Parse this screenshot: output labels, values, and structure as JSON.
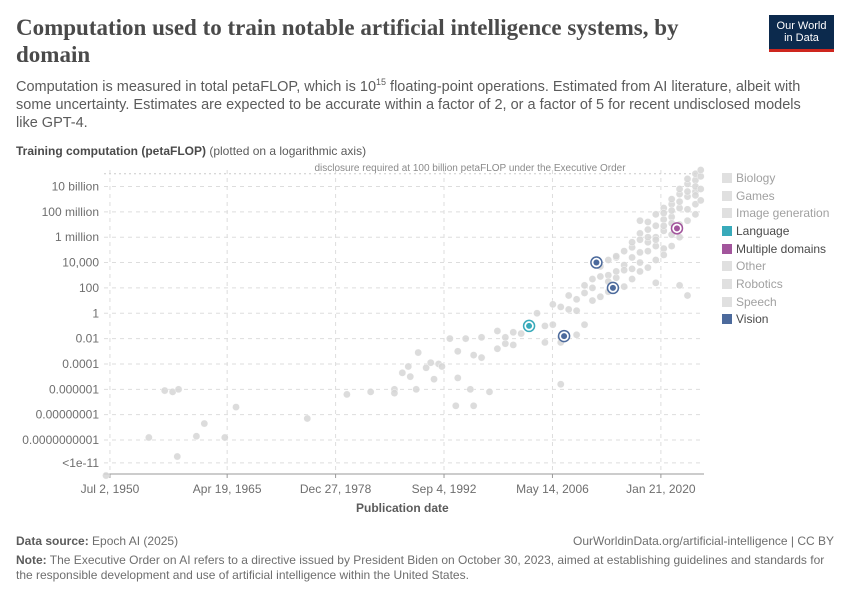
{
  "header": {
    "title": "Computation used to train notable artificial intelligence systems, by domain",
    "subtitle_pre": "Computation is measured in total petaFLOP, which is 10",
    "subtitle_sup": "15",
    "subtitle_post": " floating-point operations. Estimated from AI literature, albeit with some uncertainty. Estimates are expected to be accurate within a factor of 2, or a factor of 5 for recent undisclosed models like GPT-4.",
    "logo_line1": "Our World",
    "logo_line2": "in Data"
  },
  "axis": {
    "y_title_bold": "Training computation (petaFLOP)",
    "y_title_note": "(plotted on a logarithmic axis)",
    "x_title": "Publication date"
  },
  "footer": {
    "source_label": "Data source:",
    "source_value": "Epoch AI (2025)",
    "url": "OurWorldinData.org/artificial-intelligence | CC BY",
    "note_label": "Note:",
    "note_text": "The Executive Order on AI refers to a directive issued by President Biden on October 30, 2023, aimed at establishing guidelines and standards for the responsible development and use of artificial intelligence within the United States."
  },
  "colors": {
    "background_points": "#d9d9d9",
    "language": "#38aaba",
    "multiple_domains": "#a2559c",
    "vision": "#4c6a9c",
    "grid": "#dddddd",
    "text": "#5b5b5b"
  },
  "chart_data": {
    "type": "scatter",
    "y_scale": "log",
    "x_scale": "time",
    "xlim": [
      "1949-10-01",
      "2025-07-01"
    ],
    "ylim_exponent": [
      -12.6,
      11.3
    ],
    "x_ticks": [
      {
        "date": "1950-07-02",
        "label": "Jul 2, 1950"
      },
      {
        "date": "1965-04-19",
        "label": "Apr 19, 1965"
      },
      {
        "date": "1978-12-27",
        "label": "Dec 27, 1978"
      },
      {
        "date": "1992-09-04",
        "label": "Sep 4, 1992"
      },
      {
        "date": "2006-05-14",
        "label": "May 14, 2006"
      },
      {
        "date": "2020-01-21",
        "label": "Jan 21, 2020"
      }
    ],
    "y_ticks": [
      {
        "exp": 10,
        "label": "10 billion"
      },
      {
        "exp": 8,
        "label": "100 million"
      },
      {
        "exp": 6,
        "label": "1 million"
      },
      {
        "exp": 4,
        "label": "10,000"
      },
      {
        "exp": 2,
        "label": "100"
      },
      {
        "exp": 0,
        "label": "1"
      },
      {
        "exp": -2,
        "label": "0.01"
      },
      {
        "exp": -4,
        "label": "0.0001"
      },
      {
        "exp": -6,
        "label": "0.000001"
      },
      {
        "exp": -8,
        "label": "0.00000001"
      },
      {
        "exp": -10,
        "label": "0.0000000001"
      },
      {
        "exp": -11.8,
        "label": "<1e-11"
      }
    ],
    "threshold": {
      "exp": 11,
      "label": "disclosure required at 100 billion petaFLOP under the Executive Order"
    },
    "legend": [
      {
        "name": "Biology",
        "color": "#e0e0e0",
        "active": false
      },
      {
        "name": "Games",
        "color": "#e0e0e0",
        "active": false
      },
      {
        "name": "Image generation",
        "color": "#e0e0e0",
        "active": false
      },
      {
        "name": "Language",
        "color": "#38aaba",
        "active": true
      },
      {
        "name": "Multiple domains",
        "color": "#a2559c",
        "active": true
      },
      {
        "name": "Other",
        "color": "#e0e0e0",
        "active": false
      },
      {
        "name": "Robotics",
        "color": "#e0e0e0",
        "active": false
      },
      {
        "name": "Speech",
        "color": "#e0e0e0",
        "active": false
      },
      {
        "name": "Vision",
        "color": "#4c6a9c",
        "active": true
      }
    ],
    "highlighted_points": [
      {
        "series": "Language",
        "date": "2003-06-01",
        "exp": -1.0
      },
      {
        "series": "Vision",
        "date": "2007-11-01",
        "exp": -1.8
      },
      {
        "series": "Vision",
        "date": "2011-12-01",
        "exp": 4.0
      },
      {
        "series": "Vision",
        "date": "2014-01-01",
        "exp": 2.0
      },
      {
        "series": "Multiple domains",
        "date": "2022-02-01",
        "exp": 6.7
      }
    ],
    "background_points": [
      [
        "1950-01-01",
        -12.8
      ],
      [
        "1955-06-01",
        -9.8
      ],
      [
        "1957-06-01",
        -6.1
      ],
      [
        "1958-06-01",
        -6.2
      ],
      [
        "1959-03-01",
        -6.0
      ],
      [
        "1959-01-01",
        -11.3
      ],
      [
        "1962-06-01",
        -8.7
      ],
      [
        "1961-06-01",
        -9.7
      ],
      [
        "1965-01-01",
        -9.8
      ],
      [
        "1966-06-01",
        -7.4
      ],
      [
        "1975-06-01",
        -8.3
      ],
      [
        "1980-06-01",
        -6.4
      ],
      [
        "1983-06-01",
        -6.2
      ],
      [
        "1986-06-01",
        -6.0
      ],
      [
        "1986-06-01",
        -6.3
      ],
      [
        "1987-06-01",
        -4.7
      ],
      [
        "1988-06-01",
        -5.0
      ],
      [
        "1988-03-01",
        -4.2
      ],
      [
        "1989-03-01",
        -6.0
      ],
      [
        "1989-06-01",
        -3.1
      ],
      [
        "1990-06-01",
        -4.3
      ],
      [
        "1991-01-01",
        -3.9
      ],
      [
        "1991-06-01",
        -5.2
      ],
      [
        "1992-01-01",
        -4.0
      ],
      [
        "1992-06-01",
        -4.2
      ],
      [
        "1993-06-01",
        -2.0
      ],
      [
        "1994-06-01",
        -3.0
      ],
      [
        "1994-06-01",
        -5.1
      ],
      [
        "1994-03-01",
        -7.3
      ],
      [
        "1995-06-01",
        -2.0
      ],
      [
        "1996-06-01",
        -3.3
      ],
      [
        "1996-01-01",
        -6.0
      ],
      [
        "1996-06-01",
        -7.3
      ],
      [
        "1997-06-01",
        -3.5
      ],
      [
        "1997-06-01",
        -1.9
      ],
      [
        "1998-06-01",
        -6.2
      ],
      [
        "1999-06-01",
        -1.4
      ],
      [
        "1999-06-01",
        -2.8
      ],
      [
        "2000-06-01",
        -2.4
      ],
      [
        "2000-06-01",
        -1.9
      ],
      [
        "2001-06-01",
        -2.5
      ],
      [
        "2001-06-01",
        -1.5
      ],
      [
        "2002-06-01",
        -1.6
      ],
      [
        "2003-06-01",
        -1.0
      ],
      [
        "2004-06-01",
        0.0
      ],
      [
        "2005-06-01",
        -2.3
      ],
      [
        "2005-06-01",
        -1.0
      ],
      [
        "2006-06-01",
        -0.9
      ],
      [
        "2006-06-01",
        0.7
      ],
      [
        "2007-06-01",
        -1.9
      ],
      [
        "2007-06-01",
        -2.3
      ],
      [
        "2007-06-01",
        0.5
      ],
      [
        "2007-06-01",
        -5.6
      ],
      [
        "2008-06-01",
        0.3
      ],
      [
        "2008-06-01",
        1.4
      ],
      [
        "2009-06-01",
        -1.7
      ],
      [
        "2009-06-01",
        0.2
      ],
      [
        "2009-06-01",
        1.1
      ],
      [
        "2010-06-01",
        -0.9
      ],
      [
        "2010-06-01",
        1.6
      ],
      [
        "2010-06-01",
        2.2
      ],
      [
        "2011-06-01",
        2.0
      ],
      [
        "2011-06-01",
        1.0
      ],
      [
        "2011-06-01",
        2.7
      ],
      [
        "2012-06-01",
        2.9
      ],
      [
        "2012-06-01",
        3.7
      ],
      [
        "2012-06-01",
        1.3
      ],
      [
        "2013-06-01",
        3.0
      ],
      [
        "2013-06-01",
        4.2
      ],
      [
        "2013-06-01",
        2.5
      ],
      [
        "2013-06-01",
        1.7
      ],
      [
        "2014-06-01",
        4.4
      ],
      [
        "2014-06-01",
        2.8
      ],
      [
        "2014-06-01",
        4.5
      ],
      [
        "2014-06-01",
        3.3
      ],
      [
        "2015-06-01",
        3.8
      ],
      [
        "2015-06-01",
        4.9
      ],
      [
        "2015-06-01",
        3.4
      ],
      [
        "2015-06-01",
        2.1
      ],
      [
        "2016-06-01",
        4.4
      ],
      [
        "2016-06-01",
        5.2
      ],
      [
        "2016-06-01",
        3.5
      ],
      [
        "2016-06-01",
        5.6
      ],
      [
        "2016-06-01",
        2.7
      ],
      [
        "2017-06-01",
        4.8
      ],
      [
        "2017-06-01",
        6.3
      ],
      [
        "2017-06-01",
        3.3
      ],
      [
        "2017-06-01",
        5.8
      ],
      [
        "2017-06-01",
        4.0
      ],
      [
        "2017-06-01",
        7.3
      ],
      [
        "2018-06-01",
        4.9
      ],
      [
        "2018-06-01",
        6.6
      ],
      [
        "2018-06-01",
        5.6
      ],
      [
        "2018-06-01",
        3.6
      ],
      [
        "2018-06-01",
        6.0
      ],
      [
        "2018-06-01",
        7.2
      ],
      [
        "2019-06-01",
        5.3
      ],
      [
        "2019-06-01",
        6.9
      ],
      [
        "2019-06-01",
        4.2
      ],
      [
        "2019-06-01",
        7.8
      ],
      [
        "2019-06-01",
        6.0
      ],
      [
        "2019-06-01",
        5.8
      ],
      [
        "2019-06-01",
        2.4
      ],
      [
        "2020-06-01",
        6.5
      ],
      [
        "2020-06-01",
        7.4
      ],
      [
        "2020-06-01",
        5.1
      ],
      [
        "2020-06-01",
        8.3
      ],
      [
        "2020-06-01",
        6.9
      ],
      [
        "2020-06-01",
        4.6
      ],
      [
        "2020-06-01",
        7.9
      ],
      [
        "2021-06-01",
        7.6
      ],
      [
        "2021-06-01",
        8.6
      ],
      [
        "2021-06-01",
        6.2
      ],
      [
        "2021-06-01",
        9.0
      ],
      [
        "2021-06-01",
        5.3
      ],
      [
        "2021-06-01",
        7.1
      ],
      [
        "2021-06-01",
        8.1
      ],
      [
        "2022-06-01",
        8.3
      ],
      [
        "2022-06-01",
        9.4
      ],
      [
        "2022-06-01",
        7.0
      ],
      [
        "2022-06-01",
        9.8
      ],
      [
        "2022-06-01",
        6.0
      ],
      [
        "2022-06-01",
        8.8
      ],
      [
        "2022-06-01",
        2.2
      ],
      [
        "2023-06-01",
        9.2
      ],
      [
        "2023-06-01",
        10.2
      ],
      [
        "2023-06-01",
        8.2
      ],
      [
        "2023-06-01",
        10.6
      ],
      [
        "2023-06-01",
        7.3
      ],
      [
        "2023-06-01",
        9.6
      ],
      [
        "2023-06-01",
        1.4
      ],
      [
        "2024-06-01",
        9.6
      ],
      [
        "2024-06-01",
        10.5
      ],
      [
        "2024-06-01",
        8.6
      ],
      [
        "2024-06-01",
        11.0
      ],
      [
        "2024-06-01",
        7.8
      ],
      [
        "2024-06-01",
        10.0
      ],
      [
        "2024-06-01",
        9.3
      ],
      [
        "2025-02-01",
        10.8
      ],
      [
        "2025-02-01",
        9.8
      ],
      [
        "2025-02-01",
        11.3
      ],
      [
        "2025-02-01",
        8.9
      ]
    ]
  }
}
